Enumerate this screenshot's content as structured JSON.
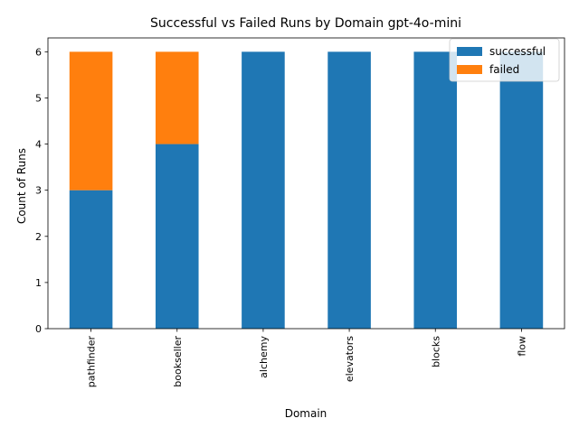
{
  "chart_data": {
    "type": "bar",
    "stacked": true,
    "title": "Successful vs Failed Runs by Domain gpt-4o-mini",
    "xlabel": "Domain",
    "ylabel": "Count of Runs",
    "categories": [
      "pathfinder",
      "bookseller",
      "alchemy",
      "elevators",
      "blocks",
      "flow"
    ],
    "series": [
      {
        "name": "successful",
        "color": "#1f77b4",
        "values": [
          3,
          4,
          6,
          6,
          6,
          6
        ]
      },
      {
        "name": "failed",
        "color": "#ff7f0e",
        "values": [
          3,
          2,
          0,
          0,
          0,
          0
        ]
      }
    ],
    "ylim": [
      0,
      6.3
    ],
    "yticks": [
      0,
      1,
      2,
      3,
      4,
      5,
      6
    ],
    "grid": false,
    "legend_position": "top-right"
  }
}
